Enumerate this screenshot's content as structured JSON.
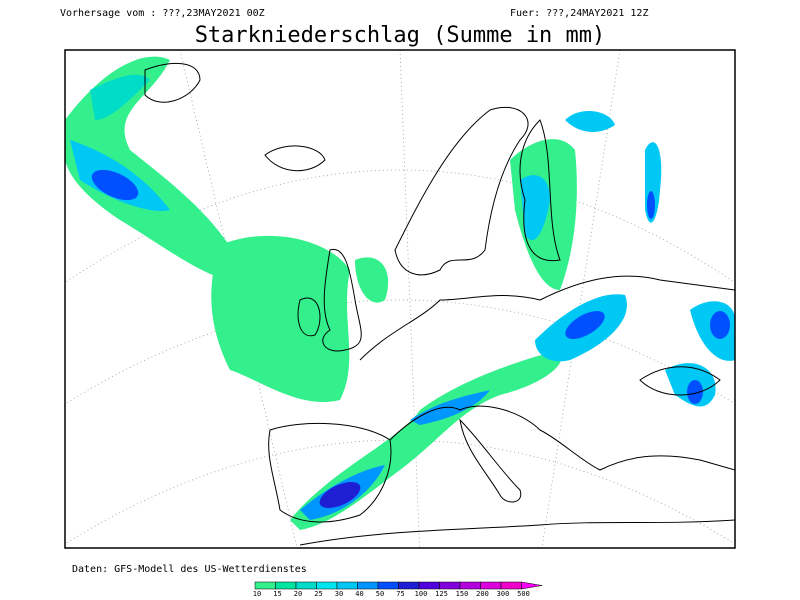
{
  "header": {
    "left": "Vorhersage vom : ???,23MAY2021 00Z",
    "right": "Fuer: ???,24MAY2021 12Z",
    "title": "Starkniederschlag (Summe in mm)"
  },
  "footer": {
    "source": "Daten: GFS-Modell des US-Wetterdienstes"
  },
  "legend": {
    "items": [
      {
        "label": "10",
        "color": "#33f08c"
      },
      {
        "label": "15",
        "color": "#00e6a0"
      },
      {
        "label": "20",
        "color": "#00dcc8"
      },
      {
        "label": "25",
        "color": "#00e6f0"
      },
      {
        "label": "30",
        "color": "#00c8f5"
      },
      {
        "label": "40",
        "color": "#0096ff"
      },
      {
        "label": "50",
        "color": "#0050ff"
      },
      {
        "label": "75",
        "color": "#1e1ed2"
      },
      {
        "label": "100",
        "color": "#5000dc"
      },
      {
        "label": "125",
        "color": "#8200dc"
      },
      {
        "label": "150",
        "color": "#b400dc"
      },
      {
        "label": "200",
        "color": "#dc00dc"
      },
      {
        "label": "300",
        "color": "#f000c8"
      },
      {
        "label": "500",
        "color": "#ff00ff"
      }
    ]
  }
}
